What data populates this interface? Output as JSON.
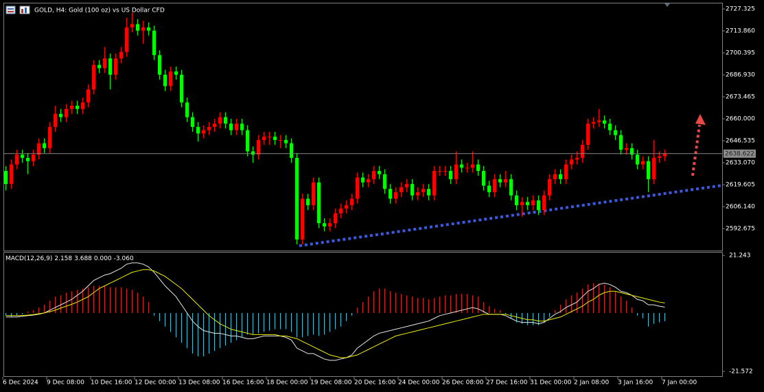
{
  "chart_data": [
    {
      "type": "candlestick",
      "title": "GOLD, H4:  Gold (100 oz) vs US Dollar CFD",
      "bull_color": "#ff0000",
      "bear_color": "#00ff00",
      "ylim": [
        2579.2,
        2730.7
      ],
      "yticks": [
        2727.325,
        {
          "value": 2713.86,
          "label": "2713.860"
        },
        2700.395,
        {
          "value": 2686.93,
          "label": "2686.930"
        },
        2673.465,
        {
          "value": 2660,
          "label": "2660.000"
        },
        2646.535,
        {
          "value": 2633.07,
          "label": "2633.070"
        },
        2619.605,
        {
          "value": 2606.14,
          "label": "2606.140"
        },
        2592.675
      ],
      "last_price": 2638.622,
      "categories": [
        "6 Dec 2024",
        null,
        null,
        null,
        null,
        null,
        null,
        null,
        "9 Dec 08:00",
        null,
        null,
        null,
        null,
        null,
        null,
        null,
        "10 Dec 16:00",
        null,
        null,
        null,
        null,
        null,
        null,
        null,
        "12 Dec 00:00",
        null,
        null,
        null,
        null,
        null,
        null,
        null,
        "13 Dec 08:00",
        null,
        null,
        null,
        null,
        null,
        null,
        null,
        "16 Dec 16:00",
        null,
        null,
        null,
        null,
        null,
        null,
        null,
        "18 Dec 00:00",
        null,
        null,
        null,
        null,
        null,
        null,
        null,
        "19 Dec 08:00",
        null,
        null,
        null,
        null,
        null,
        null,
        null,
        "20 Dec 16:00",
        null,
        null,
        null,
        null,
        null,
        null,
        null,
        "24 Dec 00:00",
        null,
        null,
        null,
        null,
        null,
        null,
        null,
        "26 Dec 08:00",
        null,
        null,
        null,
        null,
        null,
        null,
        null,
        "27 Dec 16:00",
        null,
        null,
        null,
        null,
        null,
        null,
        null,
        "31 Dec 00:00",
        null,
        null,
        null,
        null,
        null,
        null,
        null,
        "2 Jan 08:00",
        null,
        null,
        null,
        null,
        null,
        null,
        null,
        "3 Jan 16:00",
        null,
        null,
        null,
        null,
        null,
        null,
        null,
        "7 Jan 00:00"
      ],
      "ohlc": [
        [
          2628,
          2631,
          2616,
          2620
        ],
        [
          2620,
          2635,
          2617,
          2632
        ],
        [
          2632,
          2641,
          2629,
          2638
        ],
        [
          2638,
          2641,
          2633,
          2636
        ],
        [
          2636,
          2639,
          2626,
          2634
        ],
        [
          2634,
          2641,
          2631,
          2638
        ],
        [
          2638,
          2648,
          2635,
          2645
        ],
        [
          2645,
          2648,
          2639,
          2642
        ],
        [
          2642,
          2658,
          2639,
          2655
        ],
        [
          2655,
          2668,
          2652,
          2663
        ],
        [
          2663,
          2666,
          2658,
          2661
        ],
        [
          2661,
          2669,
          2658,
          2666
        ],
        [
          2666,
          2671,
          2663,
          2668
        ],
        [
          2668,
          2671,
          2663,
          2666
        ],
        [
          2666,
          2673,
          2663,
          2670
        ],
        [
          2670,
          2681,
          2667,
          2678
        ],
        [
          2678,
          2696,
          2675,
          2693
        ],
        [
          2693,
          2696,
          2688,
          2691
        ],
        [
          2691,
          2704,
          2688,
          2697
        ],
        [
          2697,
          2700,
          2678,
          2687
        ],
        [
          2687,
          2700,
          2684,
          2697
        ],
        [
          2697,
          2704,
          2694,
          2701
        ],
        [
          2701,
          2722,
          2698,
          2716
        ],
        [
          2716,
          2725,
          2713,
          2718
        ],
        [
          2718,
          2721,
          2711,
          2714
        ],
        [
          2714,
          2720,
          2706,
          2716
        ],
        [
          2716,
          2719,
          2711,
          2714
        ],
        [
          2714,
          2717,
          2696,
          2699
        ],
        [
          2699,
          2702,
          2684,
          2687
        ],
        [
          2687,
          2690,
          2677,
          2680
        ],
        [
          2680,
          2692,
          2677,
          2689
        ],
        [
          2689,
          2692,
          2684,
          2687
        ],
        [
          2687,
          2690,
          2667,
          2670
        ],
        [
          2670,
          2673,
          2658,
          2661
        ],
        [
          2661,
          2664,
          2652,
          2655
        ],
        [
          2655,
          2658,
          2646,
          2651
        ],
        [
          2651,
          2656,
          2648,
          2653
        ],
        [
          2653,
          2658,
          2650,
          2655
        ],
        [
          2655,
          2660,
          2652,
          2657
        ],
        [
          2657,
          2664,
          2654,
          2661
        ],
        [
          2661,
          2664,
          2654,
          2657
        ],
        [
          2657,
          2660,
          2650,
          2653
        ],
        [
          2653,
          2660,
          2650,
          2657
        ],
        [
          2657,
          2660,
          2650,
          2653
        ],
        [
          2653,
          2656,
          2637,
          2640
        ],
        [
          2640,
          2643,
          2633,
          2638
        ],
        [
          2638,
          2650,
          2635,
          2647
        ],
        [
          2647,
          2652,
          2644,
          2649
        ],
        [
          2649,
          2652,
          2644,
          2649
        ],
        [
          2649,
          2652,
          2644,
          2647
        ],
        [
          2647,
          2650,
          2642,
          2647
        ],
        [
          2647,
          2650,
          2642,
          2645
        ],
        [
          2645,
          2648,
          2633,
          2636
        ],
        [
          2636,
          2639,
          2583,
          2586
        ],
        [
          2586,
          2614,
          2583,
          2611
        ],
        [
          2611,
          2614,
          2604,
          2607
        ],
        [
          2607,
          2624,
          2604,
          2621
        ],
        [
          2621,
          2624,
          2593,
          2596
        ],
        [
          2596,
          2599,
          2591,
          2594
        ],
        [
          2594,
          2599,
          2591,
          2596
        ],
        [
          2596,
          2605,
          2593,
          2602
        ],
        [
          2602,
          2608,
          2599,
          2605
        ],
        [
          2605,
          2610,
          2602,
          2607
        ],
        [
          2607,
          2614,
          2604,
          2611
        ],
        [
          2611,
          2627,
          2608,
          2624
        ],
        [
          2624,
          2627,
          2618,
          2621
        ],
        [
          2621,
          2626,
          2618,
          2623
        ],
        [
          2623,
          2631,
          2620,
          2628
        ],
        [
          2628,
          2631,
          2623,
          2626
        ],
        [
          2626,
          2629,
          2614,
          2617
        ],
        [
          2617,
          2620,
          2608,
          2611
        ],
        [
          2611,
          2618,
          2608,
          2615
        ],
        [
          2615,
          2621,
          2612,
          2618
        ],
        [
          2618,
          2623,
          2615,
          2620
        ],
        [
          2620,
          2623,
          2610,
          2613
        ],
        [
          2613,
          2618,
          2610,
          2615
        ],
        [
          2615,
          2620,
          2612,
          2617
        ],
        [
          2617,
          2620,
          2610,
          2613
        ],
        [
          2613,
          2631,
          2610,
          2628
        ],
        [
          2628,
          2631,
          2625,
          2628
        ],
        [
          2628,
          2631,
          2625,
          2628
        ],
        [
          2628,
          2631,
          2620,
          2623
        ],
        [
          2623,
          2640,
          2620,
          2632
        ],
        [
          2632,
          2635,
          2627,
          2630
        ],
        [
          2630,
          2633,
          2627,
          2630
        ],
        [
          2630,
          2640,
          2627,
          2632
        ],
        [
          2632,
          2635,
          2625,
          2628
        ],
        [
          2628,
          2631,
          2616,
          2619
        ],
        [
          2619,
          2622,
          2612,
          2615
        ],
        [
          2615,
          2626,
          2612,
          2623
        ],
        [
          2623,
          2626,
          2618,
          2621
        ],
        [
          2621,
          2628,
          2618,
          2623
        ],
        [
          2623,
          2626,
          2610,
          2613
        ],
        [
          2613,
          2616,
          2604,
          2607
        ],
        [
          2607,
          2612,
          2600,
          2609
        ],
        [
          2609,
          2612,
          2604,
          2607
        ],
        [
          2607,
          2613,
          2604,
          2610
        ],
        [
          2610,
          2613,
          2601,
          2604
        ],
        [
          2604,
          2616,
          2601,
          2613
        ],
        [
          2613,
          2626,
          2610,
          2623
        ],
        [
          2623,
          2629,
          2620,
          2626
        ],
        [
          2626,
          2629,
          2620,
          2623
        ],
        [
          2623,
          2635,
          2620,
          2632
        ],
        [
          2632,
          2638,
          2629,
          2635
        ],
        [
          2635,
          2640,
          2632,
          2636
        ],
        [
          2636,
          2647,
          2633,
          2644
        ],
        [
          2644,
          2660,
          2641,
          2657
        ],
        [
          2657,
          2661,
          2654,
          2658
        ],
        [
          2658,
          2666,
          2655,
          2659
        ],
        [
          2659,
          2662,
          2654,
          2657
        ],
        [
          2657,
          2660,
          2650,
          2653
        ],
        [
          2653,
          2656,
          2647,
          2650
        ],
        [
          2650,
          2653,
          2638,
          2641
        ],
        [
          2641,
          2645,
          2638,
          2642
        ],
        [
          2642,
          2645,
          2635,
          2638
        ],
        [
          2638,
          2641,
          2629,
          2632
        ],
        [
          2632,
          2637,
          2629,
          2634
        ],
        [
          2634,
          2637,
          2615,
          2623
        ],
        [
          2623,
          2647,
          2620,
          2636
        ],
        [
          2636,
          2640,
          2633,
          2637
        ],
        [
          2637,
          2641,
          2634,
          2638.622
        ]
      ]
    },
    {
      "type": "macd",
      "label": "MACD(12,26,9)",
      "readout": [
        2.158,
        3.688,
        {
          "value": 0,
          "label": "0.000"
        },
        {
          "value": -3.06,
          "label": "-3.060"
        }
      ],
      "ylim": [
        -23.35,
        22.26
      ],
      "yticks": [
        21.243,
        -21.572
      ],
      "hist_pos_color": "#e02020",
      "hist_neg_color": "#30c8e0",
      "main_color": "#e8e8e8",
      "signal_color": "#f0f000",
      "histogram": [
        -1,
        -1.5,
        -1,
        -0.5,
        0.5,
        1,
        2,
        3,
        4.5,
        6,
        6.5,
        7.5,
        8,
        8.5,
        9,
        9.5,
        10,
        10,
        10,
        9.5,
        9.5,
        9.5,
        9,
        8.5,
        7.5,
        6,
        4,
        -1,
        -3,
        -5,
        -7,
        -9,
        -11,
        -13,
        -15,
        -16,
        -16,
        -15,
        -14,
        -13,
        -12,
        -11,
        -10,
        -9,
        -8,
        -8,
        -7.5,
        -7,
        -6.5,
        -6,
        -6,
        -6,
        -7,
        -9,
        -9,
        -8.5,
        -8,
        -8.5,
        -8,
        -7,
        -6,
        -5,
        -3,
        -1,
        2,
        4,
        6,
        8,
        9,
        9,
        8,
        7.5,
        7,
        6.5,
        6,
        5.5,
        5.5,
        5,
        5.5,
        6,
        6.5,
        6.5,
        7,
        7,
        7,
        6.5,
        6,
        4,
        2.5,
        1.5,
        1,
        -0.5,
        -2,
        -3.5,
        -4,
        -4.5,
        -4.5,
        -4.5,
        -3.5,
        -1.5,
        1,
        3,
        5,
        6.5,
        7.5,
        9,
        10.5,
        11,
        11,
        10.5,
        9.5,
        8,
        6,
        4.5,
        2,
        -1,
        -2,
        -5,
        -4,
        -3.5,
        -3.06
      ],
      "main": [
        -1.5,
        -1.5,
        -1.5,
        -1.2,
        -1,
        -0.8,
        -0.5,
        0,
        1,
        2,
        3,
        4,
        5,
        6.5,
        8,
        10,
        12,
        13,
        14,
        14.5,
        15.5,
        16.5,
        18,
        18.5,
        18.5,
        18,
        17,
        15,
        12.5,
        10,
        8,
        6,
        3,
        0,
        -3,
        -5,
        -6.5,
        -7,
        -7.5,
        -7.5,
        -8,
        -8.5,
        -8.5,
        -9,
        -9.5,
        -9.5,
        -9,
        -8.5,
        -8.5,
        -8.5,
        -8.5,
        -9,
        -10,
        -13,
        -14,
        -15,
        -15,
        -16,
        -17,
        -17.5,
        -17.5,
        -17,
        -16.5,
        -15.5,
        -13,
        -11.5,
        -10,
        -8.5,
        -7.5,
        -7,
        -6.5,
        -6,
        -5.5,
        -5,
        -4.5,
        -4,
        -3.5,
        -3,
        -2,
        -1,
        -0.5,
        0,
        0.5,
        1,
        1.5,
        2,
        1.5,
        0.5,
        -0.5,
        -0.5,
        -0.5,
        -1,
        -2,
        -3,
        -3.5,
        -3.5,
        -3.5,
        -4,
        -3.5,
        -2,
        -0.5,
        0.5,
        2,
        3,
        4,
        6,
        8,
        9,
        10.5,
        11,
        10.5,
        9.5,
        8,
        7.5,
        6.5,
        5,
        4.5,
        3,
        3,
        2.5,
        2.158
      ],
      "signal": [
        -1,
        -1,
        -1,
        -1,
        -0.8,
        -0.6,
        -0.3,
        0,
        0.5,
        1,
        1.8,
        2.5,
        3.2,
        4,
        5,
        6,
        7.5,
        9,
        10,
        11,
        12,
        13,
        14,
        15,
        15.5,
        16,
        16,
        15.5,
        14.5,
        13.5,
        12,
        10.5,
        9,
        7,
        5,
        3,
        1,
        -1,
        -2.5,
        -4,
        -5,
        -6,
        -6.5,
        -7,
        -7.5,
        -8,
        -8,
        -8,
        -8,
        -8,
        -8.5,
        -8.5,
        -9,
        -9.5,
        -10.5,
        -11.5,
        -12.5,
        -13.5,
        -14.5,
        -15.5,
        -16,
        -16.5,
        -16.5,
        -16,
        -15.5,
        -14.5,
        -13.5,
        -12.5,
        -11.5,
        -10.5,
        -9.5,
        -8.5,
        -8,
        -7.5,
        -7,
        -6.5,
        -6,
        -5.5,
        -5,
        -4.5,
        -4,
        -3.5,
        -3,
        -2.5,
        -2,
        -1.5,
        -1,
        -0.5,
        -0.5,
        -0.5,
        -0.5,
        -0.5,
        -1,
        -1.5,
        -2,
        -2.5,
        -2.5,
        -3,
        -3,
        -2.5,
        -2,
        -1.5,
        -0.5,
        0.5,
        1.5,
        2.5,
        4,
        5,
        6.5,
        7.5,
        8,
        8,
        7.5,
        7,
        6.5,
        6,
        5.5,
        5,
        4.5,
        4,
        3.688
      ]
    }
  ]
}
